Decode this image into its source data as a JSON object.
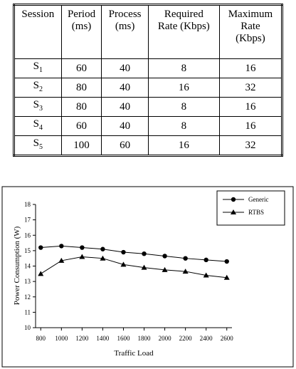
{
  "table": {
    "header": [
      [
        "Session"
      ],
      [
        "Period",
        "(ms)"
      ],
      [
        "Process",
        "(ms)"
      ],
      [
        "Required",
        "Rate (Kbps)"
      ],
      [
        "Maximum",
        "Rate",
        "(Kbps)"
      ]
    ],
    "rows": [
      [
        {
          "base": "S",
          "sub": "1"
        },
        60,
        40,
        8,
        16
      ],
      [
        {
          "base": "S",
          "sub": "2"
        },
        80,
        40,
        16,
        32
      ],
      [
        {
          "base": "S",
          "sub": "3"
        },
        80,
        40,
        8,
        16
      ],
      [
        {
          "base": "S",
          "sub": "4"
        },
        60,
        40,
        8,
        16
      ],
      [
        {
          "base": "S",
          "sub": "5"
        },
        100,
        60,
        16,
        32
      ]
    ]
  },
  "chart_data": {
    "type": "line",
    "x_label": "Traffic Load",
    "y_label": "Power Consumption (W)",
    "x": [
      800,
      1000,
      1200,
      1400,
      1600,
      1800,
      2000,
      2200,
      2400,
      2600
    ],
    "series": [
      {
        "name": "Generic",
        "color": "#000000",
        "marker": "circle",
        "values": [
          15.2,
          15.3,
          15.2,
          15.1,
          14.9,
          14.8,
          14.65,
          14.5,
          14.4,
          14.3
        ]
      },
      {
        "name": "RTBS",
        "color": "#000000",
        "marker": "triangle",
        "values": [
          13.5,
          14.35,
          14.6,
          14.5,
          14.1,
          13.9,
          13.75,
          13.65,
          13.4,
          13.25
        ]
      }
    ],
    "xlim": [
      750,
      2650
    ],
    "ylim": [
      10,
      18
    ],
    "xticks": [
      800,
      1000,
      1200,
      1400,
      1600,
      1800,
      2000,
      2200,
      2400,
      2600
    ],
    "yticks": [
      10,
      11,
      12,
      13,
      14,
      15,
      16,
      17,
      18
    ],
    "legend": "upper right"
  }
}
